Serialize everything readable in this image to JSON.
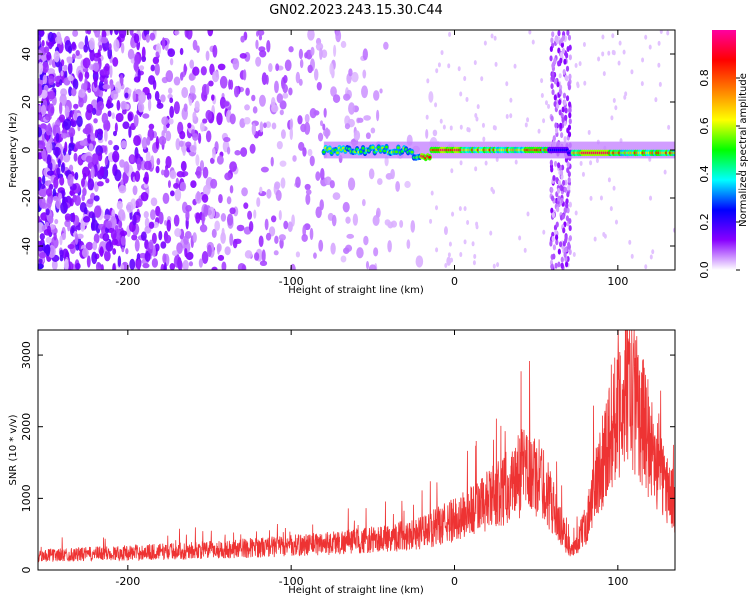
{
  "title": "GN02.2023.243.15.30.C44",
  "chart_data": [
    {
      "type": "heatmap",
      "xlabel": "Height of straight line (km)",
      "ylabel": "Frequency (Hz)",
      "xlim": [
        -255,
        135
      ],
      "ylim": [
        -50,
        50
      ],
      "x_ticks": [
        -200,
        -100,
        0,
        100
      ],
      "y_ticks": [
        -40,
        -20,
        0,
        20,
        40
      ],
      "colorbar": {
        "label": "Normalized spectral amplitude",
        "range": [
          0,
          1
        ],
        "ticks": [
          0.0,
          0.2,
          0.4,
          0.6,
          0.8
        ],
        "colors": [
          "#ffffff",
          "#8800ff",
          "#0000ff",
          "#00ffff",
          "#00ff00",
          "#ffff00",
          "#ff7f00",
          "#ff0000",
          "#ff00a0"
        ]
      },
      "features": [
        {
          "name": "noise band",
          "x_range": [
            -255,
            -20
          ],
          "freq_range": [
            -50,
            50
          ],
          "level": 0.15
        },
        {
          "name": "carrier",
          "x_range": [
            -80,
            135
          ],
          "freq": 0,
          "level": 0.9
        },
        {
          "name": "vertical streak",
          "x_center": 65,
          "freq_range": [
            -50,
            50
          ],
          "level": 0.1
        }
      ]
    },
    {
      "type": "line",
      "xlabel": "Height of straight line (km)",
      "ylabel": "SNR (10 * v/v)",
      "xlim": [
        -255,
        135
      ],
      "ylim": [
        0,
        3350
      ],
      "x_ticks": [
        -200,
        -100,
        0,
        100
      ],
      "y_ticks": [
        0,
        1000,
        2000,
        3000
      ],
      "color": "#ee3333",
      "envelope": {
        "x": [
          -255,
          -200,
          -150,
          -100,
          -50,
          -20,
          0,
          20,
          35,
          45,
          55,
          65,
          72,
          80,
          90,
          100,
          107,
          115,
          125,
          135
        ],
        "y": [
          200,
          240,
          280,
          340,
          420,
          520,
          700,
          950,
          1200,
          1400,
          1200,
          600,
          250,
          600,
          1500,
          2300,
          2600,
          2100,
          1400,
          900
        ]
      }
    }
  ]
}
